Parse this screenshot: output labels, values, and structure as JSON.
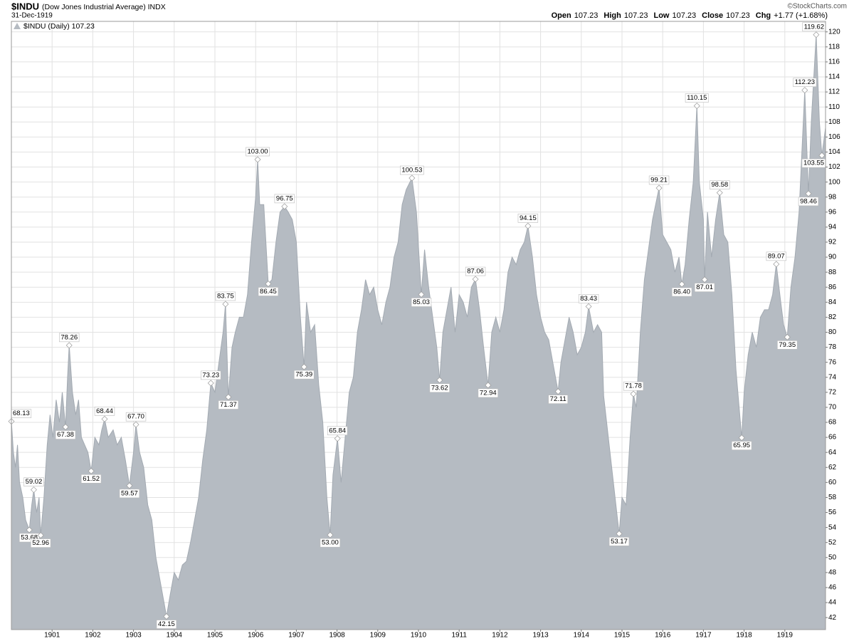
{
  "header": {
    "symbol": "$INDU",
    "name": "(Dow Jones Industrial Average) INDX",
    "date": "31-Dec-1919",
    "quote": [
      {
        "label": "Open",
        "value": 107.23
      },
      {
        "label": "High",
        "value": 107.23
      },
      {
        "label": "Low",
        "value": 107.23
      },
      {
        "label": "Close",
        "value": 107.23
      },
      {
        "label": "Chg",
        "value": "+1.77 (+1.68%)"
      }
    ],
    "credit": "©StockCharts.com"
  },
  "chart_data": {
    "type": "area",
    "grid": true,
    "legend": "top-left",
    "xlim": [
      1900,
      1920
    ],
    "xticks": [
      1901,
      1902,
      1903,
      1904,
      1905,
      1906,
      1907,
      1908,
      1909,
      1910,
      1911,
      1912,
      1913,
      1914,
      1915,
      1916,
      1917,
      1918,
      1919
    ],
    "ylim": [
      40.4,
      121.4
    ],
    "yticks": [
      42,
      44,
      46,
      48,
      50,
      52,
      54,
      56,
      58,
      60,
      62,
      64,
      66,
      68,
      70,
      72,
      74,
      76,
      78,
      80,
      82,
      84,
      86,
      88,
      90,
      92,
      94,
      96,
      98,
      100,
      102,
      104,
      106,
      108,
      110,
      112,
      114,
      116,
      118,
      120
    ],
    "series": [
      {
        "name": "$INDU (Daily) 107.23",
        "color": "#b5bbc2",
        "line_color": "#a3aab2",
        "x": [
          1900.0,
          1900.05,
          1900.1,
          1900.15,
          1900.2,
          1900.28,
          1900.35,
          1900.44,
          1900.5,
          1900.55,
          1900.62,
          1900.68,
          1900.72,
          1900.8,
          1900.88,
          1900.95,
          1901.02,
          1901.1,
          1901.18,
          1901.25,
          1901.33,
          1901.38,
          1901.42,
          1901.5,
          1901.58,
          1901.65,
          1901.72,
          1901.8,
          1901.88,
          1901.96,
          1902.05,
          1902.15,
          1902.22,
          1902.29,
          1902.38,
          1902.5,
          1902.6,
          1902.7,
          1902.8,
          1902.9,
          1903.0,
          1903.06,
          1903.15,
          1903.25,
          1903.35,
          1903.45,
          1903.55,
          1903.65,
          1903.75,
          1903.81,
          1903.9,
          1904.0,
          1904.1,
          1904.2,
          1904.3,
          1904.4,
          1904.5,
          1904.6,
          1904.7,
          1904.8,
          1904.9,
          1905.0,
          1905.1,
          1905.2,
          1905.26,
          1905.33,
          1905.42,
          1905.5,
          1905.6,
          1905.7,
          1905.8,
          1905.9,
          1906.0,
          1906.05,
          1906.1,
          1906.2,
          1906.31,
          1906.4,
          1906.5,
          1906.6,
          1906.71,
          1906.8,
          1906.9,
          1907.0,
          1907.1,
          1907.19,
          1907.25,
          1907.35,
          1907.45,
          1907.55,
          1907.65,
          1907.75,
          1907.83,
          1907.9,
          1908.01,
          1908.1,
          1908.2,
          1908.3,
          1908.4,
          1908.5,
          1908.6,
          1908.7,
          1908.8,
          1908.9,
          1909.0,
          1909.1,
          1909.2,
          1909.3,
          1909.4,
          1909.5,
          1909.6,
          1909.7,
          1909.84,
          1909.95,
          1910.07,
          1910.15,
          1910.25,
          1910.35,
          1910.45,
          1910.52,
          1910.6,
          1910.7,
          1910.8,
          1910.9,
          1911.0,
          1911.1,
          1911.2,
          1911.3,
          1911.4,
          1911.5,
          1911.6,
          1911.71,
          1911.8,
          1911.9,
          1912.0,
          1912.1,
          1912.2,
          1912.3,
          1912.4,
          1912.5,
          1912.6,
          1912.69,
          1912.8,
          1912.9,
          1913.0,
          1913.1,
          1913.2,
          1913.3,
          1913.43,
          1913.5,
          1913.6,
          1913.7,
          1913.8,
          1913.9,
          1914.0,
          1914.1,
          1914.18,
          1914.3,
          1914.4,
          1914.5,
          1914.55,
          1914.93,
          1915.0,
          1915.1,
          1915.2,
          1915.28,
          1915.35,
          1915.45,
          1915.55,
          1915.65,
          1915.75,
          1915.91,
          1916.0,
          1916.1,
          1916.2,
          1916.3,
          1916.4,
          1916.47,
          1916.55,
          1916.65,
          1916.75,
          1916.84,
          1916.9,
          1917.0,
          1917.03,
          1917.1,
          1917.2,
          1917.3,
          1917.4,
          1917.5,
          1917.6,
          1917.7,
          1917.8,
          1917.94,
          1918.0,
          1918.1,
          1918.2,
          1918.3,
          1918.4,
          1918.5,
          1918.6,
          1918.7,
          1918.79,
          1918.9,
          1918.97,
          1919.06,
          1919.15,
          1919.25,
          1919.35,
          1919.49,
          1919.58,
          1919.65,
          1919.77,
          1919.85,
          1919.91,
          1920.0
        ],
        "values": [
          68.13,
          64,
          62,
          65,
          60,
          58,
          55,
          53.68,
          57,
          59.02,
          56,
          58,
          52.96,
          58,
          65,
          69,
          66,
          71,
          68,
          72,
          67.38,
          74,
          78.26,
          72,
          69,
          71,
          66,
          65,
          64,
          61.52,
          66,
          65,
          67,
          68.44,
          66,
          67,
          65,
          66,
          63,
          59.57,
          64,
          67.7,
          64,
          62,
          57,
          55,
          50,
          47,
          44,
          42.15,
          45,
          48,
          47,
          49,
          49.5,
          52,
          55,
          58,
          63,
          67,
          73.23,
          72,
          76,
          80,
          83.75,
          71.37,
          78,
          80,
          82,
          82,
          85,
          92,
          98,
          103,
          97,
          97,
          86.45,
          87,
          92,
          96,
          96.75,
          96,
          95,
          92,
          82,
          75.39,
          84,
          80,
          81,
          73,
          68,
          58,
          53,
          61,
          65.84,
          60,
          66,
          72,
          74,
          80,
          83,
          87,
          85,
          86,
          83,
          81,
          84,
          86,
          90,
          92,
          97,
          99,
          100.53,
          96,
          85.03,
          91,
          86,
          82,
          78,
          73.62,
          80,
          83,
          86,
          80,
          85,
          84,
          82,
          86,
          87.06,
          83,
          78,
          72.94,
          80,
          82,
          80,
          83,
          88,
          90,
          89,
          91,
          92,
          94.15,
          90,
          85,
          82,
          80,
          79,
          76,
          72.11,
          76,
          79,
          82,
          80,
          77,
          78,
          80,
          83.43,
          80,
          81,
          80,
          71.5,
          53.17,
          58,
          57,
          66,
          71.78,
          70,
          80,
          87,
          91,
          95,
          99.21,
          93,
          92,
          91,
          88,
          90,
          86.4,
          89,
          95,
          100,
          110.15,
          100,
          95,
          87.01,
          96,
          90,
          95,
          98.58,
          93,
          92,
          85,
          75,
          65.95,
          72,
          77,
          80,
          78,
          82,
          83,
          83,
          85,
          89.07,
          84,
          81,
          79.35,
          86,
          90,
          96,
          112.23,
          98.46,
          108,
          119.62,
          108,
          103.55,
          107.23
        ]
      }
    ],
    "annotations": {
      "x": [
        1900.0,
        1900.44,
        1900.55,
        1900.72,
        1901.33,
        1901.42,
        1901.96,
        1902.29,
        1902.9,
        1903.06,
        1903.81,
        1904.9,
        1905.26,
        1905.33,
        1906.05,
        1906.31,
        1906.71,
        1907.19,
        1907.83,
        1908.01,
        1909.84,
        1910.07,
        1910.52,
        1911.4,
        1911.71,
        1912.69,
        1913.43,
        1914.18,
        1914.93,
        1915.28,
        1915.91,
        1916.47,
        1916.84,
        1917.03,
        1917.4,
        1917.94,
        1918.79,
        1919.06,
        1919.49,
        1919.58,
        1919.77,
        1919.91
      ],
      "values": [
        68.13,
        53.68,
        59.02,
        52.96,
        67.38,
        78.26,
        61.52,
        68.44,
        59.57,
        67.7,
        42.15,
        73.23,
        83.75,
        71.37,
        103,
        86.45,
        96.75,
        75.39,
        53,
        65.84,
        100.53,
        85.03,
        73.62,
        87.06,
        72.94,
        94.15,
        72.11,
        83.43,
        53.17,
        71.78,
        99.21,
        86.4,
        110.15,
        87.01,
        98.58,
        65.95,
        89.07,
        79.35,
        112.23,
        98.46,
        119.62,
        103.55
      ],
      "value_labels": [
        "68.13",
        "53.68",
        "59.02",
        "52.96",
        "67.38",
        "78.26",
        "61.52",
        "68.44",
        "59.57",
        "67.70",
        "42.15",
        "73.23",
        "83.75",
        "71.37",
        "103.00",
        "86.45",
        "96.75",
        "75.39",
        "53.00",
        "65.84",
        "100.53",
        "85.03",
        "73.62",
        "87.06",
        "72.94",
        "94.15",
        "72.11",
        "83.43",
        "53.17",
        "71.78",
        "99.21",
        "86.40",
        "110.15",
        "87.01",
        "98.58",
        "65.95",
        "89.07",
        "79.35",
        "112.23",
        "98.46",
        "119.62",
        "103.55"
      ]
    }
  }
}
